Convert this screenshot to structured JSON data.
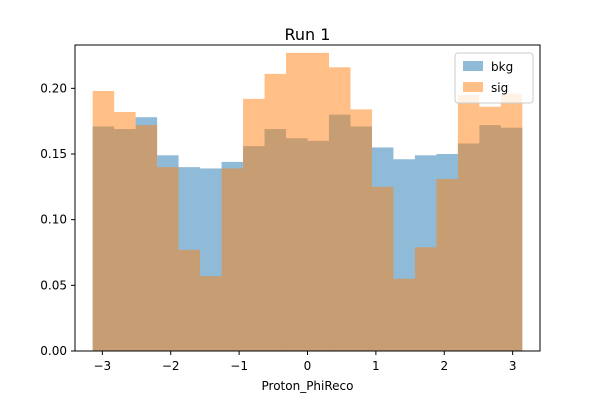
{
  "chart_data": {
    "type": "histogram",
    "title": "Run 1",
    "xlabel": "Proton_PhiReco",
    "ylabel": "",
    "xlim": [
      -3.4,
      3.4
    ],
    "ylim": [
      0.0,
      0.233
    ],
    "x_ticks": [
      -3,
      -2,
      -1,
      0,
      1,
      2,
      3
    ],
    "x_tick_labels": [
      "−3",
      "−2",
      "−1",
      "0",
      "1",
      "2",
      "3"
    ],
    "y_ticks": [
      0.0,
      0.05,
      0.1,
      0.15,
      0.2
    ],
    "y_tick_labels": [
      "0.00",
      "0.05",
      "0.10",
      "0.15",
      "0.20"
    ],
    "grid": false,
    "legend_position": "top-right",
    "bin_edges": [
      -3.1416,
      -2.8274,
      -2.5133,
      -2.1991,
      -1.885,
      -1.5708,
      -1.2566,
      -0.9425,
      -0.6283,
      -0.3142,
      0.0,
      0.3142,
      0.6283,
      0.9425,
      1.2566,
      1.5708,
      1.885,
      2.1991,
      2.5133,
      2.8274,
      3.1416
    ],
    "series": [
      {
        "name": "bkg",
        "color": "#1f77b4",
        "alpha": 0.5,
        "values": [
          0.171,
          0.169,
          0.178,
          0.149,
          0.14,
          0.139,
          0.144,
          0.156,
          0.169,
          0.162,
          0.16,
          0.18,
          0.171,
          0.155,
          0.146,
          0.149,
          0.15,
          0.158,
          0.172,
          0.17
        ]
      },
      {
        "name": "sig",
        "color": "#ff7f0e",
        "alpha": 0.5,
        "values": [
          0.198,
          0.182,
          0.172,
          0.14,
          0.077,
          0.057,
          0.139,
          0.192,
          0.211,
          0.227,
          0.227,
          0.216,
          0.184,
          0.125,
          0.055,
          0.079,
          0.131,
          0.195,
          0.186,
          0.196
        ]
      }
    ]
  }
}
